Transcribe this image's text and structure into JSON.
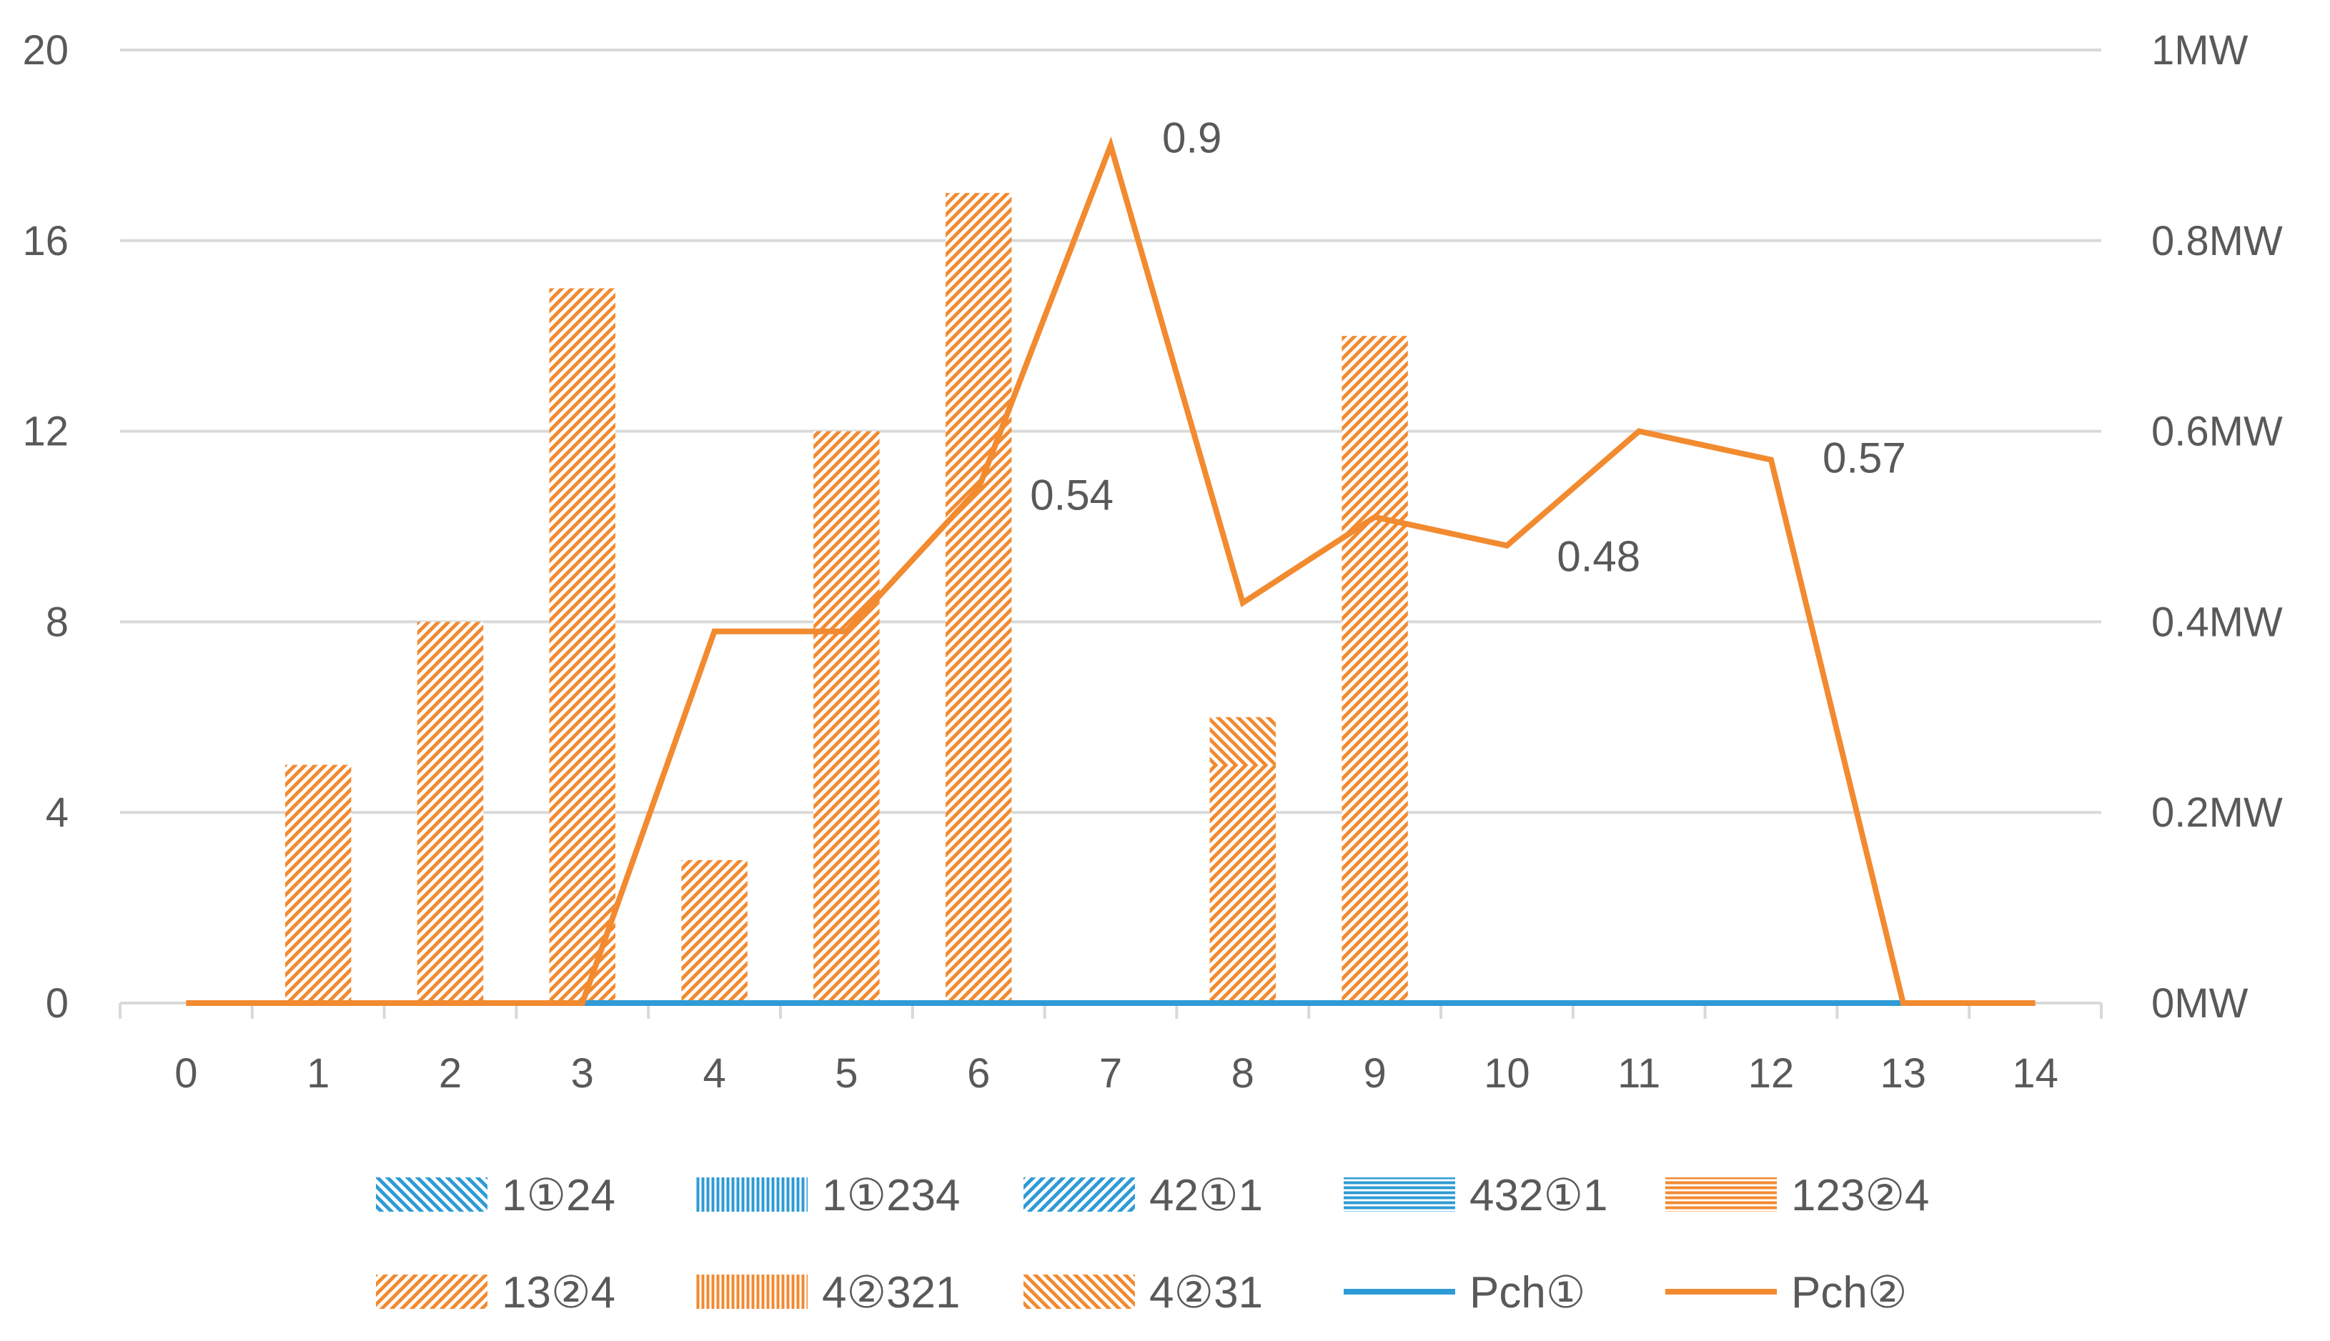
{
  "chart_data": {
    "type": "bar",
    "x": [
      0,
      1,
      2,
      3,
      4,
      5,
      6,
      7,
      8,
      9,
      10,
      11,
      12,
      13,
      14
    ],
    "x_tick_labels": [
      "0",
      "1",
      "2",
      "3",
      "4",
      "5",
      "6",
      "7",
      "8",
      "9",
      "10",
      "11",
      "12",
      "13",
      "14"
    ],
    "ylim_left": [
      0,
      20
    ],
    "y_left_ticks": [
      0,
      4,
      8,
      12,
      16,
      20
    ],
    "y_left_tick_labels": [
      "0",
      "4",
      "8",
      "12",
      "16",
      "20"
    ],
    "ylim_right": [
      0,
      1
    ],
    "y_right_ticks": [
      0,
      0.2,
      0.4,
      0.6,
      0.8,
      1
    ],
    "y_right_tick_labels": [
      "0MW",
      "0.2MW",
      "0.4MW",
      "0.6MW",
      "0.8MW",
      "1MW"
    ],
    "grid": true,
    "legend_position": "bottom",
    "bar_series": [
      {
        "name": "1①24",
        "color": "#2E9BD6",
        "pattern": "diag-down",
        "values": [
          0,
          0,
          0,
          0,
          0,
          0,
          0,
          0,
          0,
          0,
          0,
          0,
          0,
          0,
          0
        ]
      },
      {
        "name": "1①234",
        "color": "#2E9BD6",
        "pattern": "vertical",
        "values": [
          0,
          0,
          0,
          0,
          0,
          0,
          0,
          0,
          0,
          0,
          0,
          0,
          0,
          0,
          0
        ]
      },
      {
        "name": "42①1",
        "color": "#2E9BD6",
        "pattern": "diag-up",
        "values": [
          0,
          0,
          0,
          0,
          0,
          0,
          0,
          0,
          0,
          0,
          0,
          0,
          0,
          0,
          0
        ]
      },
      {
        "name": "432①1",
        "color": "#2E9BD6",
        "pattern": "horizontal",
        "values": [
          0,
          0,
          0,
          0,
          0,
          0,
          0,
          0,
          0,
          0,
          0,
          0,
          0,
          0,
          0
        ]
      },
      {
        "name": "123②4",
        "color": "#F28A30",
        "pattern": "horizontal",
        "values": [
          0,
          0,
          0,
          0,
          0,
          0,
          0,
          0,
          0,
          0,
          0,
          0,
          0,
          0,
          0
        ]
      },
      {
        "name": "13②4",
        "color": "#F28A30",
        "pattern": "diag-up",
        "values": [
          0,
          5,
          8,
          15,
          3,
          12,
          17,
          0,
          5,
          14,
          0,
          0,
          0,
          0,
          0
        ]
      },
      {
        "name": "4②321",
        "color": "#F28A30",
        "pattern": "vertical",
        "values": [
          0,
          0,
          0,
          0,
          0,
          0,
          0,
          0,
          0,
          0,
          0,
          0,
          0,
          0,
          0
        ]
      },
      {
        "name": "4②31",
        "color": "#F28A30",
        "pattern": "diag-down",
        "values": [
          0,
          0,
          0,
          0,
          0,
          0,
          0,
          0,
          1,
          0,
          0,
          0,
          0,
          0,
          0
        ]
      }
    ],
    "line_series": [
      {
        "name": "Pch①",
        "color": "#2E9BD6",
        "axis": "right",
        "x": [
          3,
          4,
          5,
          6,
          7,
          8,
          9,
          10,
          11,
          12,
          13
        ],
        "values": [
          0,
          0,
          0,
          0,
          0,
          0,
          0,
          0,
          0,
          0,
          0
        ]
      },
      {
        "name": "Pch②",
        "color": "#F28A30",
        "axis": "right",
        "x": [
          0,
          1,
          2,
          3,
          4,
          5,
          6,
          7,
          8,
          9,
          10,
          11,
          12,
          13,
          14
        ],
        "values": [
          0,
          0,
          0,
          0,
          0.39,
          0.39,
          0.54,
          0.9,
          0.42,
          0.51,
          0.48,
          0.6,
          0.57,
          0,
          0
        ]
      }
    ],
    "data_labels": [
      {
        "text": "0.54",
        "x": 6,
        "value": 0.54
      },
      {
        "text": "0.9",
        "x": 7,
        "value": 0.9
      },
      {
        "text": "0.48",
        "x": 10,
        "value": 0.48
      },
      {
        "text": "0.57",
        "x": 12,
        "value": 0.57
      }
    ]
  }
}
